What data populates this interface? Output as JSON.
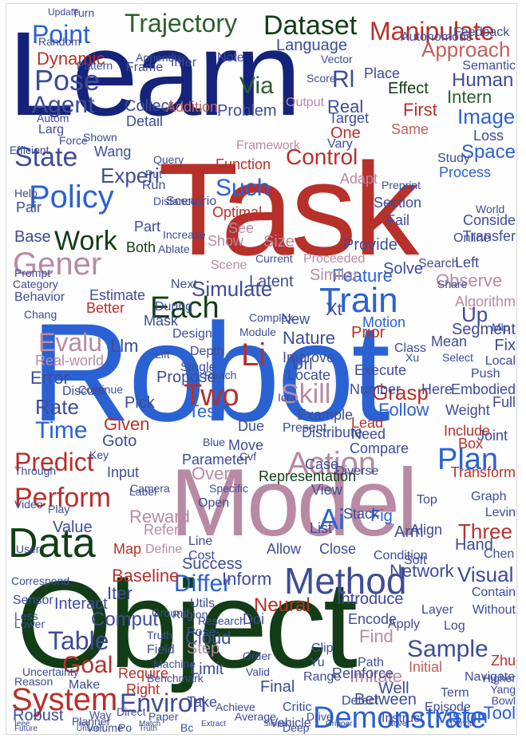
{
  "palette": {
    "navy": "#15237a",
    "red": "#b8302a",
    "blue": "#2b62d3",
    "mauve": "#b98aa4",
    "green": "#2c5f2e",
    "darkgreen": "#123d16",
    "slate": "#3e4c98",
    "salmon": "#c4605a"
  },
  "words": [
    {
      "text": "Learn",
      "color": "navy"
    },
    {
      "text": "Task",
      "color": "red"
    },
    {
      "text": "Robot",
      "color": "blue"
    },
    {
      "text": "Model",
      "color": "mauve"
    },
    {
      "text": "Object",
      "color": "darkgreen"
    },
    {
      "text": "Trajectory",
      "color": "green"
    },
    {
      "text": "Dataset",
      "color": "darkgreen"
    },
    {
      "text": "Manipulate",
      "color": "red"
    },
    {
      "text": "Point",
      "color": "blue"
    },
    {
      "text": "Dynamic",
      "color": "red"
    },
    {
      "text": "Pose",
      "color": "slate"
    },
    {
      "text": "Agent",
      "color": "slate"
    },
    {
      "text": "Via",
      "color": "green"
    },
    {
      "text": "Rl",
      "color": "slate"
    },
    {
      "text": "Approach",
      "color": "salmon"
    },
    {
      "text": "Human",
      "color": "slate"
    },
    {
      "text": "Intern",
      "color": "green"
    },
    {
      "text": "Image",
      "color": "blue"
    },
    {
      "text": "Real",
      "color": "slate"
    },
    {
      "text": "One",
      "color": "red"
    },
    {
      "text": "First",
      "color": "red"
    },
    {
      "text": "Same",
      "color": "salmon"
    },
    {
      "text": "Effect",
      "color": "darkgreen"
    },
    {
      "text": "Control",
      "color": "red"
    },
    {
      "text": "State",
      "color": "slate"
    },
    {
      "text": "Experi",
      "color": "slate"
    },
    {
      "text": "Policy",
      "color": "blue"
    },
    {
      "text": "Gener",
      "color": "mauve"
    },
    {
      "text": "Work",
      "color": "darkgreen"
    },
    {
      "text": "Base",
      "color": "slate"
    },
    {
      "text": "Such",
      "color": "blue"
    },
    {
      "text": "Space",
      "color": "blue"
    },
    {
      "text": "Process",
      "color": "blue"
    },
    {
      "text": "Loss",
      "color": "slate"
    },
    {
      "text": "Function",
      "color": "red"
    },
    {
      "text": "Optimal",
      "color": "red"
    },
    {
      "text": "Show",
      "color": "mauve"
    },
    {
      "text": "See",
      "color": "mauve"
    },
    {
      "text": "Size",
      "color": "mauve"
    },
    {
      "text": "Scene",
      "color": "mauve"
    },
    {
      "text": "Both",
      "color": "darkgreen"
    },
    {
      "text": "Simulate",
      "color": "slate"
    },
    {
      "text": "Train",
      "color": "blue"
    },
    {
      "text": "Feature",
      "color": "blue"
    },
    {
      "text": "Observe",
      "color": "mauve"
    },
    {
      "text": "Left",
      "color": "slate"
    },
    {
      "text": "Each",
      "color": "darkgreen"
    },
    {
      "text": "Evalu",
      "color": "mauve"
    },
    {
      "text": "Llm",
      "color": "slate"
    },
    {
      "text": "Real-world",
      "color": "mauve"
    },
    {
      "text": "Error",
      "color": "slate"
    },
    {
      "text": "Rate",
      "color": "slate"
    },
    {
      "text": "Time",
      "color": "blue"
    },
    {
      "text": "Two",
      "color": "red"
    },
    {
      "text": "Test",
      "color": "blue"
    },
    {
      "text": "Propose",
      "color": "slate"
    },
    {
      "text": "Pick",
      "color": "slate"
    },
    {
      "text": "Skill",
      "color": "mauve"
    },
    {
      "text": "Grasp",
      "color": "red"
    },
    {
      "text": "Follow",
      "color": "blue"
    },
    {
      "text": "Xt",
      "color": "slate"
    },
    {
      "text": "Predict",
      "color": "red"
    },
    {
      "text": "Perform",
      "color": "red"
    },
    {
      "text": "Data",
      "color": "darkgreen"
    },
    {
      "text": "Action",
      "color": "mauve"
    },
    {
      "text": "Plan",
      "color": "blue"
    },
    {
      "text": "Ai",
      "color": "blue"
    },
    {
      "text": "Fig",
      "color": "blue"
    },
    {
      "text": "Method",
      "color": "slate"
    },
    {
      "text": "Success",
      "color": "slate"
    },
    {
      "text": "Differ",
      "color": "blue"
    },
    {
      "text": "Network",
      "color": "slate"
    },
    {
      "text": "Visual",
      "color": "slate"
    },
    {
      "text": "Table",
      "color": "slate"
    },
    {
      "text": "Goal",
      "color": "red"
    },
    {
      "text": "Comput",
      "color": "slate"
    },
    {
      "text": "System",
      "color": "red"
    },
    {
      "text": "Environ",
      "color": "slate"
    },
    {
      "text": "Demonstrate",
      "color": "blue"
    },
    {
      "text": "Sample",
      "color": "slate"
    },
    {
      "text": "Initial",
      "color": "salmon"
    },
    {
      "text": "Step",
      "color": "mauve"
    },
    {
      "text": "Limit",
      "color": "slate"
    },
    {
      "text": "Neural",
      "color": "red"
    },
    {
      "text": "Find",
      "color": "mauve"
    },
    {
      "text": "Imitate",
      "color": "mauve"
    },
    {
      "text": "Vision",
      "color": "blue"
    },
    {
      "text": "Tool",
      "color": "blue"
    },
    {
      "text": "Between",
      "color": "slate"
    },
    {
      "text": "Well",
      "color": "slate"
    },
    {
      "text": "Final",
      "color": "slate"
    },
    {
      "text": "Reward",
      "color": "mauve"
    },
    {
      "text": "Map",
      "color": "red"
    },
    {
      "text": "Value",
      "color": "slate"
    },
    {
      "text": "Input",
      "color": "slate"
    },
    {
      "text": "Over",
      "color": "mauve"
    },
    {
      "text": "Baseline",
      "color": "red"
    },
    {
      "text": "Iter",
      "color": "slate"
    },
    {
      "text": "Interact",
      "color": "slate"
    },
    {
      "text": "Distribute",
      "color": "slate"
    },
    {
      "text": "Three",
      "color": "red"
    },
    {
      "text": "Arm",
      "color": "slate"
    },
    {
      "text": "Encode",
      "color": "slate"
    },
    {
      "text": "Execute",
      "color": "slate"
    },
    {
      "text": "Number",
      "color": "slate"
    },
    {
      "text": "Mean",
      "color": "slate"
    },
    {
      "text": "Box",
      "color": "red"
    },
    {
      "text": "Include",
      "color": "red"
    },
    {
      "text": "Joint",
      "color": "slate"
    },
    {
      "text": "Transform",
      "color": "red"
    },
    {
      "text": "Algorithm",
      "color": "mauve"
    },
    {
      "text": "Fix",
      "color": "slate"
    },
    {
      "text": "Full",
      "color": "slate"
    },
    {
      "text": "Up",
      "color": "slate"
    },
    {
      "text": "Prior",
      "color": "red"
    },
    {
      "text": "Motion",
      "color": "blue"
    },
    {
      "text": "Li",
      "color": "red"
    },
    {
      "text": "Url",
      "color": "slate"
    },
    {
      "text": "Due",
      "color": "slate"
    },
    {
      "text": "Move",
      "color": "slate"
    },
    {
      "text": "Representation",
      "color": "darkgreen"
    },
    {
      "text": "Given",
      "color": "red"
    },
    {
      "text": "Goto",
      "color": "slate"
    },
    {
      "text": "Parameter",
      "color": "slate"
    },
    {
      "text": "Case",
      "color": "slate"
    },
    {
      "text": "Need",
      "color": "slate"
    },
    {
      "text": "Compare",
      "color": "slate"
    },
    {
      "text": "Lead",
      "color": "red"
    },
    {
      "text": "Present",
      "color": "slate"
    },
    {
      "text": "Improve",
      "color": "slate"
    },
    {
      "text": "Locate",
      "color": "slate"
    },
    {
      "text": "Example",
      "color": "slate"
    },
    {
      "text": "Inform",
      "color": "slate"
    },
    {
      "text": "Camera",
      "color": "slate"
    },
    {
      "text": "Cost",
      "color": "slate"
    },
    {
      "text": "Line",
      "color": "slate"
    },
    {
      "text": "Open",
      "color": "slate"
    },
    {
      "text": "Specific",
      "color": "slate"
    },
    {
      "text": "Label",
      "color": "slate"
    },
    {
      "text": "Refer",
      "color": "mauve"
    },
    {
      "text": "Define",
      "color": "mauve"
    },
    {
      "text": "Hand",
      "color": "slate"
    },
    {
      "text": "Graph",
      "color": "slate"
    },
    {
      "text": "Robust",
      "color": "slate"
    },
    {
      "text": "Require",
      "color": "red"
    },
    {
      "text": "Right",
      "color": "red"
    },
    {
      "text": "Make",
      "color": "slate"
    },
    {
      "text": "Take",
      "color": "slate"
    },
    {
      "text": "Reinforce",
      "color": "slate"
    },
    {
      "text": "Path",
      "color": "slate"
    },
    {
      "text": "Detect",
      "color": "slate"
    },
    {
      "text": "Doi",
      "color": "slate"
    },
    {
      "text": "Cloud",
      "color": "slate"
    },
    {
      "text": "Pose-",
      "color": "slate"
    },
    {
      "text": "Achieve",
      "color": "slate"
    },
    {
      "text": "Zhu",
      "color": "red"
    },
    {
      "text": "Higher",
      "color": "slate"
    },
    {
      "text": "Yang",
      "color": "slate"
    },
    {
      "text": "Bowl",
      "color": "slate"
    },
    {
      "text": "Mask",
      "color": "slate"
    },
    {
      "text": "Next",
      "color": "slate"
    },
    {
      "text": "Design",
      "color": "slate"
    },
    {
      "text": "Estimate",
      "color": "slate"
    },
    {
      "text": "Better",
      "color": "red"
    },
    {
      "text": "Behavior",
      "color": "slate"
    },
    {
      "text": "Depth",
      "color": "slate"
    },
    {
      "text": "Single",
      "color": "slate"
    },
    {
      "text": "During",
      "color": "slate"
    },
    {
      "text": "Nature",
      "color": "slate"
    },
    {
      "text": "New",
      "color": "slate"
    },
    {
      "text": "Latent",
      "color": "slate"
    },
    {
      "text": "Provide",
      "color": "slate"
    },
    {
      "text": "Adapt",
      "color": "mauve"
    },
    {
      "text": "Fail",
      "color": "slate"
    },
    {
      "text": "Section",
      "color": "slate"
    },
    {
      "text": "Search",
      "color": "slate"
    },
    {
      "text": "Online",
      "color": "slate"
    },
    {
      "text": "Solve",
      "color": "slate"
    },
    {
      "text": "Similar",
      "color": "mauve"
    },
    {
      "text": "Proceeded",
      "color": "mauve"
    },
    {
      "text": "Framework",
      "color": "mauve"
    },
    {
      "text": "Target",
      "color": "slate"
    },
    {
      "text": "Collect",
      "color": "slate"
    },
    {
      "text": "Detail",
      "color": "slate"
    },
    {
      "text": "Part",
      "color": "slate"
    },
    {
      "text": "Note",
      "color": "slate"
    },
    {
      "text": "Infer",
      "color": "slate"
    },
    {
      "text": "Language",
      "color": "slate"
    },
    {
      "text": "Place",
      "color": "slate"
    },
    {
      "text": "Frame",
      "color": "slate"
    },
    {
      "text": "Appendix",
      "color": "slate"
    },
    {
      "text": "Pattern",
      "color": "slate"
    },
    {
      "text": "Random",
      "color": "slate"
    },
    {
      "text": "Turn",
      "color": "slate"
    },
    {
      "text": "Update",
      "color": "slate"
    },
    {
      "text": "Autonomous",
      "color": "slate"
    },
    {
      "text": "Feedback",
      "color": "slate"
    },
    {
      "text": "Semantic",
      "color": "slate"
    },
    {
      "text": "Problem",
      "color": "slate"
    },
    {
      "text": "Addition",
      "color": "salmon"
    },
    {
      "text": "Output",
      "color": "mauve"
    },
    {
      "text": "Wang",
      "color": "slate"
    },
    {
      "text": "Run",
      "color": "slate"
    },
    {
      "text": "Scenario",
      "color": "slate"
    },
    {
      "text": "Conside",
      "color": "slate"
    },
    {
      "text": "Transfer",
      "color": "slate"
    },
    {
      "text": "World",
      "color": "slate"
    },
    {
      "text": "Study",
      "color": "slate"
    },
    {
      "text": "Vary",
      "color": "slate"
    },
    {
      "text": "Preprint",
      "color": "slate"
    },
    {
      "text": "Xu",
      "color": "slate"
    },
    {
      "text": "Select",
      "color": "slate"
    },
    {
      "text": "Embodied",
      "color": "slate"
    },
    {
      "text": "Segment",
      "color": "slate"
    },
    {
      "text": "Mlp",
      "color": "slate"
    },
    {
      "text": "Share",
      "color": "slate"
    },
    {
      "text": "Class",
      "color": "slate"
    },
    {
      "text": "Weight",
      "color": "slate"
    },
    {
      "text": "Local",
      "color": "slate"
    },
    {
      "text": "Push",
      "color": "slate"
    },
    {
      "text": "Here",
      "color": "slate"
    },
    {
      "text": "Align",
      "color": "slate"
    },
    {
      "text": "Top",
      "color": "slate"
    },
    {
      "text": "Levin",
      "color": "slate"
    },
    {
      "text": "Stack",
      "color": "slate"
    },
    {
      "text": "List",
      "color": "slate"
    },
    {
      "text": "View",
      "color": "slate"
    },
    {
      "text": "Diverse",
      "color": "slate"
    },
    {
      "text": "Close",
      "color": "slate"
    },
    {
      "text": "Allow",
      "color": "slate"
    },
    {
      "text": "Condition",
      "color": "slate"
    },
    {
      "text": "Soft",
      "color": "slate"
    },
    {
      "text": "Chen",
      "color": "slate"
    },
    {
      "text": "Without",
      "color": "slate"
    },
    {
      "text": "Contain",
      "color": "slate"
    },
    {
      "text": "Introduce",
      "color": "slate"
    },
    {
      "text": "Apply",
      "color": "slate"
    },
    {
      "text": "Log",
      "color": "slate"
    },
    {
      "text": "Layer",
      "color": "slate"
    },
    {
      "text": "Episode",
      "color": "slate"
    },
    {
      "text": "Navigate",
      "color": "slate"
    },
    {
      "text": "Term",
      "color": "slate"
    },
    {
      "text": "Instruct",
      "color": "slate"
    },
    {
      "text": "Drive",
      "color": "slate"
    },
    {
      "text": "Average",
      "color": "slate"
    },
    {
      "text": "Vehicle",
      "color": "slate"
    },
    {
      "text": "Critic",
      "color": "slate"
    },
    {
      "text": "Range",
      "color": "slate"
    },
    {
      "text": "Yu",
      "color": "slate"
    },
    {
      "text": "Clip",
      "color": "slate"
    },
    {
      "text": "Deep",
      "color": "slate"
    },
    {
      "text": "Bc",
      "color": "slate"
    },
    {
      "text": "Po",
      "color": "slate"
    },
    {
      "text": "Volume",
      "color": "slate"
    },
    {
      "text": "Planner",
      "color": "slate"
    },
    {
      "text": "Reason",
      "color": "slate"
    },
    {
      "text": "Uncertainty",
      "color": "slate"
    },
    {
      "text": "Correspond",
      "color": "slate"
    },
    {
      "text": "Sensor",
      "color": "slate"
    },
    {
      "text": "Less",
      "color": "slate"
    },
    {
      "text": "Lower",
      "color": "slate"
    },
    {
      "text": "Through",
      "color": "slate"
    },
    {
      "text": "Video",
      "color": "slate"
    },
    {
      "text": "User",
      "color": "slate"
    },
    {
      "text": "Play",
      "color": "slate"
    },
    {
      "text": "Key",
      "color": "slate"
    },
    {
      "text": "Help",
      "color": "slate"
    },
    {
      "text": "Pair",
      "color": "slate"
    },
    {
      "text": "Efficient",
      "color": "slate"
    },
    {
      "text": "Shown",
      "color": "slate"
    },
    {
      "text": "Force",
      "color": "slate"
    },
    {
      "text": "Larg",
      "color": "slate"
    },
    {
      "text": "Autom",
      "color": "slate"
    },
    {
      "text": "Query",
      "color": "slate"
    },
    {
      "text": "Put",
      "color": "slate"
    },
    {
      "text": "Distance",
      "color": "slate"
    },
    {
      "text": "Increase",
      "color": "slate"
    },
    {
      "text": "Ablate",
      "color": "slate"
    },
    {
      "text": "Complex",
      "color": "slate"
    },
    {
      "text": "Module",
      "color": "slate"
    },
    {
      "text": "Research",
      "color": "slate"
    },
    {
      "text": "Utils",
      "color": "slate"
    },
    {
      "text": "Region",
      "color": "slate"
    },
    {
      "text": "Ground",
      "color": "slate"
    },
    {
      "text": "Truth",
      "color": "slate"
    },
    {
      "text": "Field",
      "color": "slate"
    },
    {
      "text": "Machine",
      "color": "slate"
    },
    {
      "text": "Benchmark",
      "color": "slate"
    },
    {
      "text": "Direct",
      "color": "slate"
    },
    {
      "text": "Paper",
      "color": "slate"
    },
    {
      "text": "Way",
      "color": "slate"
    },
    {
      "text": "Order",
      "color": "slate"
    },
    {
      "text": "Valid",
      "color": "slate"
    },
    {
      "text": "Current",
      "color": "slate"
    },
    {
      "text": "Vector",
      "color": "slate"
    },
    {
      "text": "Score",
      "color": "slate"
    },
    {
      "text": "Prompt",
      "color": "slate"
    },
    {
      "text": "Category",
      "color": "slate"
    },
    {
      "text": "Chang",
      "color": "slate"
    },
    {
      "text": "Discuss",
      "color": "slate"
    },
    {
      "text": "Continue",
      "color": "slate"
    },
    {
      "text": "Lift",
      "color": "slate"
    },
    {
      "text": "Reach",
      "color": "slate"
    },
    {
      "text": "Blue",
      "color": "slate"
    },
    {
      "text": "Cvf",
      "color": "slate"
    },
    {
      "text": "Icra",
      "color": "slate"
    },
    {
      "text": "Ieee",
      "color": "slate"
    },
    {
      "text": "Iros",
      "color": "slate"
    },
    {
      "text": "Match",
      "color": "slate"
    },
    {
      "text": "Extract",
      "color": "slate"
    },
    {
      "text": "Simple",
      "color": "slate"
    },
    {
      "text": "Gripper",
      "color": "slate"
    },
    {
      "text": "Novel",
      "color": "slate"
    },
    {
      "text": "Denote",
      "color": "slate"
    },
    {
      "text": "Future",
      "color": "slate"
    },
    {
      "text": "Unseen",
      "color": "slate"
    },
    {
      "text": "Truth",
      "color": "slate"
    }
  ]
}
